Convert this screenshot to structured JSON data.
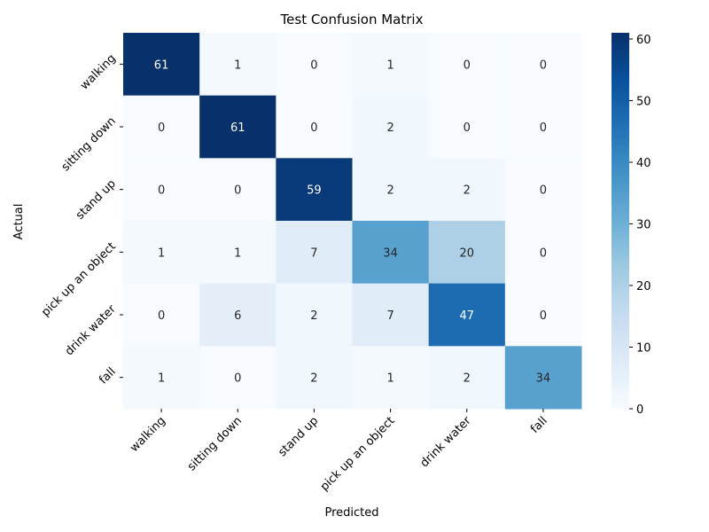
{
  "chart_data": {
    "type": "heatmap",
    "title": "Test Confusion Matrix",
    "xlabel": "Predicted",
    "ylabel": "Actual",
    "x_categories": [
      "walking",
      "sitting down",
      "stand up",
      "pick up an object",
      "drink water",
      "fall"
    ],
    "y_categories": [
      "walking",
      "sitting down",
      "stand up",
      "pick up an object",
      "drink water",
      "fall"
    ],
    "matrix": [
      [
        61,
        1,
        0,
        1,
        0,
        0
      ],
      [
        0,
        61,
        0,
        2,
        0,
        0
      ],
      [
        0,
        0,
        59,
        2,
        2,
        0
      ],
      [
        1,
        1,
        7,
        34,
        20,
        0
      ],
      [
        0,
        6,
        2,
        7,
        47,
        0
      ],
      [
        1,
        0,
        2,
        1,
        2,
        34
      ]
    ],
    "colormap": "Blues",
    "colorbar": {
      "min": 0,
      "max": 61,
      "ticks": [
        0,
        10,
        20,
        30,
        40,
        50,
        60
      ]
    },
    "colors": {
      "low": "#f7fbff",
      "high": "#08306b"
    }
  }
}
